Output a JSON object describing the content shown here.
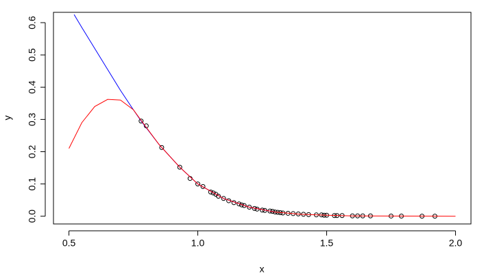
{
  "chart_data": {
    "type": "line",
    "xlabel": "x",
    "ylabel": "y",
    "xlim": [
      0.44,
      2.06
    ],
    "ylim": [
      -0.024,
      0.632
    ],
    "xticks": [
      0.5,
      {
        "value": 1.0,
        "label": "1.0"
      },
      1.5,
      {
        "value": 2.0,
        "label": "2.0"
      }
    ],
    "yticks": [
      {
        "value": 0,
        "label": "0.0"
      },
      0.1,
      0.2,
      0.3,
      0.4,
      0.5,
      0.6
    ],
    "series": [
      {
        "mode": "markers",
        "color": "#000000",
        "x": [
          0.78,
          0.8,
          0.86,
          0.93,
          0.97,
          1.0,
          1.02,
          1.05,
          1.06,
          1.07,
          1.08,
          1.1,
          1.12,
          1.14,
          1.16,
          1.17,
          1.18,
          1.2,
          1.22,
          1.23,
          1.25,
          1.26,
          1.28,
          1.29,
          1.3,
          1.31,
          1.32,
          1.33,
          1.35,
          1.37,
          1.39,
          1.41,
          1.43,
          1.46,
          1.48,
          1.49,
          1.5,
          1.53,
          1.54,
          1.56,
          1.6,
          1.62,
          1.64,
          1.67,
          1.75,
          1.79,
          1.87,
          1.92
        ],
        "values": [
          0.295,
          0.28,
          0.213,
          0.152,
          0.117,
          0.1,
          0.092,
          0.075,
          0.072,
          0.068,
          0.062,
          0.055,
          0.048,
          0.042,
          0.038,
          0.035,
          0.033,
          0.028,
          0.024,
          0.022,
          0.019,
          0.018,
          0.016,
          0.015,
          0.013,
          0.012,
          0.011,
          0.01,
          0.009,
          0.008,
          0.007,
          0.006,
          0.005,
          0.004,
          0.004,
          0.003,
          0.003,
          0.002,
          0.002,
          0.002,
          0.001,
          0.001,
          0.001,
          0.001,
          0.0005,
          0.0004,
          0.0002,
          0.0001
        ]
      },
      {
        "mode": "line",
        "color": "#0000ff",
        "x": [
          0.52,
          0.55,
          0.6,
          0.65,
          0.7,
          0.75,
          0.78,
          0.85,
          0.93,
          1.0,
          1.1,
          1.2,
          1.3
        ],
        "values": [
          0.625,
          0.585,
          0.52,
          0.455,
          0.39,
          0.33,
          0.295,
          0.222,
          0.152,
          0.1,
          0.055,
          0.028,
          0.013
        ]
      },
      {
        "mode": "line",
        "color": "#ff0000",
        "x": [
          0.5,
          0.55,
          0.6,
          0.65,
          0.7,
          0.75,
          0.78,
          0.85,
          0.93,
          1.0,
          1.1,
          1.2,
          1.3,
          1.4,
          1.5,
          1.6,
          1.8,
          2.0
        ],
        "values": [
          0.21,
          0.29,
          0.34,
          0.362,
          0.36,
          0.33,
          0.297,
          0.222,
          0.152,
          0.1,
          0.055,
          0.028,
          0.013,
          0.006,
          0.003,
          0.001,
          0.0003,
          0
        ]
      }
    ]
  }
}
